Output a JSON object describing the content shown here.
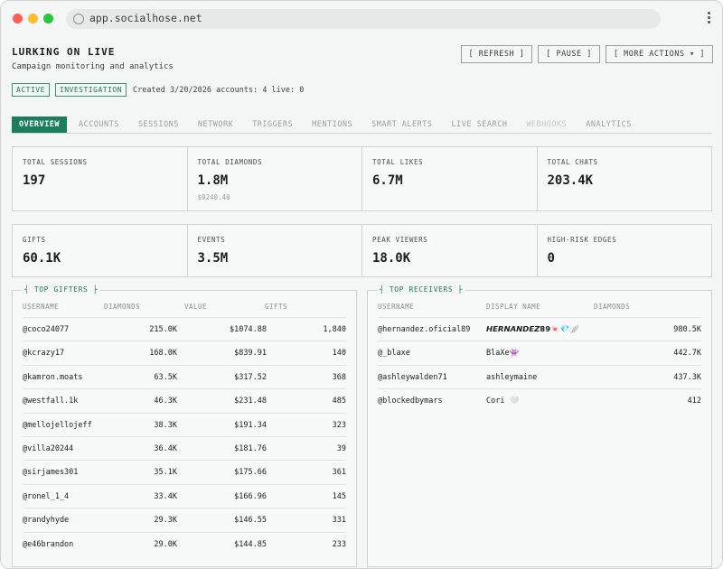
{
  "browser": {
    "url": "app.socialhose.net"
  },
  "header": {
    "title": "LURKING ON LIVE",
    "subtitle": "Campaign monitoring and analytics",
    "badges": [
      "ACTIVE",
      "INVESTIGATION"
    ],
    "meta": "Created 3/20/2026 accounts: 4 live: 0",
    "actions": {
      "refresh": "[ REFRESH ]",
      "pause": "[ PAUSE ]",
      "more": "[ MORE ACTIONS ▾ ]"
    }
  },
  "tabs": [
    {
      "label": "OVERVIEW",
      "state": "active"
    },
    {
      "label": "ACCOUNTS",
      "state": "normal"
    },
    {
      "label": "SESSIONS",
      "state": "normal"
    },
    {
      "label": "NETWORK",
      "state": "normal"
    },
    {
      "label": "TRIGGERS",
      "state": "normal"
    },
    {
      "label": "MENTIONS",
      "state": "normal"
    },
    {
      "label": "SMART ALERTS",
      "state": "normal"
    },
    {
      "label": "LIVE SEARCH",
      "state": "normal"
    },
    {
      "label": "WEBHOOKS",
      "state": "disabled"
    },
    {
      "label": "ANALYTICS",
      "state": "normal"
    }
  ],
  "stats_row1": [
    {
      "label": "TOTAL SESSIONS",
      "value": "197",
      "sub": ""
    },
    {
      "label": "TOTAL DIAMONDS",
      "value": "1.8M",
      "sub": "$9240.40"
    },
    {
      "label": "TOTAL LIKES",
      "value": "6.7M",
      "sub": ""
    },
    {
      "label": "TOTAL CHATS",
      "value": "203.4K",
      "sub": ""
    }
  ],
  "stats_row2": [
    {
      "label": "GIFTS",
      "value": "60.1K"
    },
    {
      "label": "EVENTS",
      "value": "3.5M"
    },
    {
      "label": "PEAK VIEWERS",
      "value": "18.0K"
    },
    {
      "label": "HIGH-RISK EDGES",
      "value": "0"
    }
  ],
  "top_gifters": {
    "title": "┤ TOP GIFTERS ├",
    "columns": [
      "USERNAME",
      "DIAMONDS",
      "VALUE",
      "GIFTS"
    ],
    "rows": [
      [
        "@coco24077",
        "215.0K",
        "$1074.88",
        "1,840"
      ],
      [
        "@kcrazy17",
        "168.0K",
        "$839.91",
        "140"
      ],
      [
        "@kamron.moats",
        "63.5K",
        "$317.52",
        "368"
      ],
      [
        "@westfall.1k",
        "46.3K",
        "$231.48",
        "485"
      ],
      [
        "@mellojellojeff",
        "38.3K",
        "$191.34",
        "323"
      ],
      [
        "@villa20244",
        "36.4K",
        "$181.76",
        "39"
      ],
      [
        "@sirjames301",
        "35.1K",
        "$175.66",
        "361"
      ],
      [
        "@ronel_1_4",
        "33.4K",
        "$166.96",
        "145"
      ],
      [
        "@randyhyde",
        "29.3K",
        "$146.55",
        "331"
      ],
      [
        "@e46brandon",
        "29.0K",
        "$144.85",
        "233"
      ]
    ]
  },
  "top_receivers": {
    "title": "┤ TOP RECEIVERS ├",
    "columns": [
      "USERNAME",
      "DISPLAY NAME",
      "DIAMONDS"
    ],
    "rows": [
      [
        "@hernandez.oficial89",
        "𝙃𝙀𝙍𝙉𝘼𝙉𝘿𝙀𝙕𝟴𝟵🍬💎🪽",
        "980.5K"
      ],
      [
        "@_blaxe",
        "BlaXe👾",
        "442.7K"
      ],
      [
        "@ashleywalden71",
        "ashleymaine",
        "437.3K"
      ],
      [
        "@blockedbymars",
        "Cori 🤍",
        "412"
      ]
    ]
  }
}
